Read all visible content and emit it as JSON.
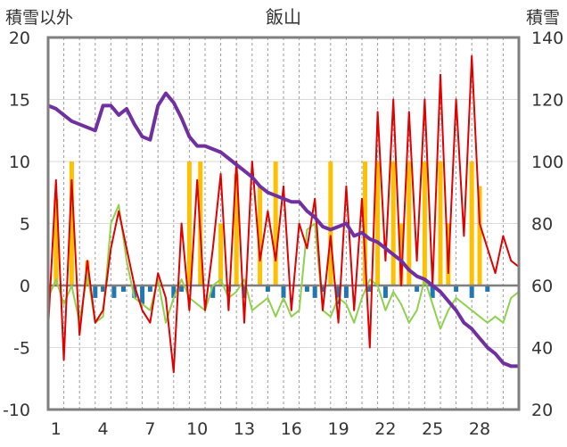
{
  "chart_data": {
    "type": "line",
    "title": "飯山",
    "ylabel_left": "積雪以外",
    "ylabel_right": "積雪",
    "ylim_left": [
      -10,
      20
    ],
    "ylim_right": [
      20,
      140
    ],
    "yticks_left": [
      -10,
      -5,
      0,
      5,
      10,
      15,
      20
    ],
    "yticks_right": [
      20,
      40,
      60,
      80,
      100,
      120,
      140
    ],
    "xlim": [
      0,
      30
    ],
    "xticks": [
      1,
      4,
      7,
      10,
      13,
      16,
      19,
      22,
      25,
      28
    ],
    "grid": true,
    "series": [
      {
        "color": "#8fd14f",
        "x": [
          0,
          0.5,
          1,
          1.5,
          2,
          2.5,
          3,
          3.5,
          4,
          4.5,
          5,
          5.5,
          6,
          6.5,
          7,
          7.5,
          8,
          8.5,
          9,
          9.5,
          10,
          10.5,
          11,
          11.5,
          12,
          12.5,
          13,
          13.5,
          14,
          14.5,
          15,
          15.5,
          16,
          16.5,
          17,
          17.5,
          18,
          18.5,
          19,
          19.5,
          20,
          20.5,
          21,
          21.5,
          22,
          22.5,
          23,
          23.5,
          24,
          24.5,
          25,
          25.5,
          26,
          26.5,
          27,
          27.5,
          28,
          28.5,
          29,
          29.5,
          30
        ],
        "values": [
          -1,
          0.5,
          -1.5,
          0,
          -3,
          1,
          -3,
          -2.5,
          5,
          6.5,
          2,
          -1,
          -1.5,
          -2,
          0.5,
          -3,
          -1,
          0.5,
          -1,
          -1.5,
          -2,
          0,
          0.5,
          -1,
          -0.5,
          0.5,
          -2,
          -1.5,
          -1,
          -2.5,
          -1,
          -2.5,
          -2,
          4.5,
          5,
          -2,
          -2.5,
          -1,
          -1.5,
          -3,
          -1,
          0.5,
          0,
          -2,
          -0.5,
          -1.5,
          -3,
          -2,
          0.5,
          -1.5,
          -3.5,
          -2,
          -1,
          -1.5,
          -2,
          -2.5,
          -3,
          -2.5,
          -3,
          -1,
          -0.5
        ]
      },
      {
        "color": "#e00000",
        "x": [
          0,
          0.5,
          1,
          1.5,
          2,
          2.5,
          3,
          3.5,
          4,
          4.5,
          5,
          5.5,
          6,
          6.5,
          7,
          7.5,
          8,
          8.5,
          9,
          9.5,
          10,
          10.5,
          11,
          11.5,
          12,
          12.5,
          13,
          13.5,
          14,
          14.5,
          15,
          15.5,
          16,
          16.5,
          17,
          17.5,
          18,
          18.5,
          19,
          19.5,
          20,
          20.5,
          21,
          21.5,
          22,
          22.5,
          23,
          23.5,
          24,
          24.5,
          25,
          25.5,
          26,
          26.5,
          27,
          27.5,
          28,
          28.5,
          29,
          29.5,
          30
        ],
        "values": [
          -3.5,
          8.5,
          -6,
          8.5,
          -4,
          2,
          -3,
          -2,
          3,
          6,
          3,
          0,
          -2,
          -3,
          1,
          -1,
          -7,
          5,
          -2,
          8.5,
          -2,
          3,
          9,
          -2,
          10,
          -3,
          10,
          2,
          6,
          2,
          8,
          -2,
          5,
          3,
          7,
          -2,
          4,
          -3,
          8,
          -2,
          7,
          -5,
          14,
          2,
          15,
          0,
          14,
          2,
          15,
          0,
          17,
          1,
          15,
          4,
          18.5,
          5,
          3,
          1,
          4,
          2,
          1.5
        ]
      },
      {
        "color": "#7030a0",
        "axis": "right",
        "x": [
          0,
          0.5,
          1,
          1.5,
          2,
          2.5,
          3,
          3.5,
          4,
          4.5,
          5,
          5.5,
          6,
          6.5,
          7,
          7.5,
          8,
          8.5,
          9,
          9.5,
          10,
          10.5,
          11,
          11.5,
          12,
          12.5,
          13,
          13.5,
          14,
          14.5,
          15,
          15.5,
          16,
          16.5,
          17,
          17.5,
          18,
          18.5,
          19,
          19.5,
          20,
          20.5,
          21,
          21.5,
          22,
          22.5,
          23,
          23.5,
          24,
          24.5,
          25,
          25.5,
          26,
          26.5,
          27,
          27.5,
          28,
          28.5,
          29,
          29.5,
          30
        ],
        "values": [
          118,
          117,
          115,
          113,
          112,
          111,
          110,
          118,
          118,
          115,
          117,
          112,
          108,
          107,
          118,
          122,
          119,
          114,
          108,
          105,
          105,
          104,
          103,
          101,
          99,
          97,
          95,
          92,
          90,
          89,
          88,
          87,
          87,
          84,
          82,
          79,
          78,
          79,
          80,
          76,
          77,
          75,
          74,
          72,
          70,
          68,
          65,
          63,
          62,
          60,
          58,
          55,
          52,
          48,
          46,
          43,
          40,
          38,
          35,
          34,
          34
        ]
      }
    ],
    "bars": [
      {
        "color": "#ffc000",
        "x": [
          0.5,
          1.5,
          2.5,
          9,
          9.7,
          11,
          12,
          13.5,
          14.5,
          18,
          20.2,
          21,
          22,
          22.5,
          23,
          24,
          25,
          25.5,
          27,
          27.5
        ],
        "values": [
          7,
          10,
          2,
          10,
          10,
          5,
          9,
          8,
          10,
          10,
          10,
          10,
          10,
          5,
          10,
          10,
          10,
          5,
          10,
          8
        ]
      },
      {
        "color": "#1f77b4",
        "x": [
          3,
          3.5,
          4.2,
          4.8,
          5.5,
          6,
          6.5,
          8,
          8.5,
          10.5,
          11.5,
          12.5,
          14,
          15,
          16.5,
          17,
          17.5,
          18.5,
          19,
          20.5,
          21.5,
          23.5,
          24.5,
          26,
          27,
          28
        ],
        "values": [
          -1,
          -0.5,
          -1,
          -0.5,
          -1,
          -1.5,
          -0.5,
          -1,
          -0.5,
          -1,
          -0.5,
          -1,
          -0.5,
          -1,
          -0.5,
          -1,
          -0.5,
          -1.5,
          -1,
          -0.5,
          -1,
          -0.5,
          -1,
          -0.5,
          -1,
          -0.5
        ]
      }
    ]
  }
}
